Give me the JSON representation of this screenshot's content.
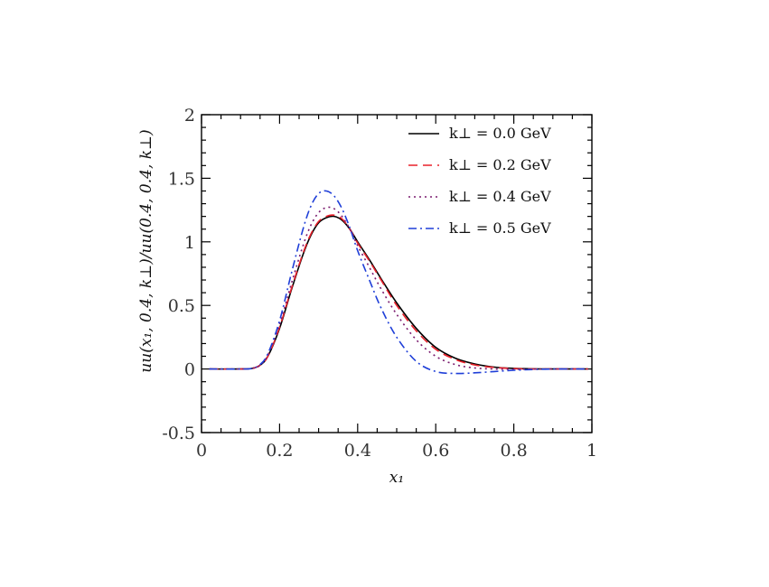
{
  "chart_data": {
    "type": "line",
    "title": "",
    "xlabel": "x₁",
    "ylabel": "uu(x₁, 0.4, k⊥)/uu(0.4, 0.4, k⊥)",
    "xlim": [
      0,
      1
    ],
    "ylim": [
      -0.5,
      2
    ],
    "xticks": [
      0,
      0.2,
      0.4,
      0.6,
      0.8,
      1
    ],
    "xtick_labels": [
      "0",
      "0.2",
      "0.4",
      "0.6",
      "0.8",
      "1"
    ],
    "yticks": [
      -0.5,
      0,
      0.5,
      1,
      1.5,
      2
    ],
    "ytick_labels": [
      "-0.5",
      "0",
      "0.5",
      "1",
      "1.5",
      "2"
    ],
    "grid": false,
    "legend_position": "top-right",
    "x": [
      0.02,
      0.1,
      0.13,
      0.15,
      0.17,
      0.2,
      0.23,
      0.26,
      0.28,
      0.3,
      0.32,
      0.34,
      0.36,
      0.38,
      0.4,
      0.43,
      0.46,
      0.5,
      0.55,
      0.6,
      0.65,
      0.7,
      0.75,
      0.8,
      0.85,
      0.9,
      0.99
    ],
    "series": [
      {
        "name": "k⊥ = 0.0 GeV",
        "color": "#000000",
        "dash": "solid",
        "values": [
          0,
          0,
          0.005,
          0.03,
          0.1,
          0.32,
          0.62,
          0.9,
          1.05,
          1.15,
          1.19,
          1.2,
          1.17,
          1.1,
          1.0,
          0.86,
          0.71,
          0.52,
          0.32,
          0.17,
          0.085,
          0.04,
          0.015,
          0.005,
          0.001,
          0,
          0
        ]
      },
      {
        "name": "k⊥ = 0.2 GeV",
        "color": "#e8202a",
        "dash": "dashed",
        "values": [
          0,
          0,
          0.005,
          0.03,
          0.1,
          0.33,
          0.63,
          0.91,
          1.06,
          1.16,
          1.2,
          1.21,
          1.18,
          1.1,
          0.99,
          0.85,
          0.7,
          0.5,
          0.3,
          0.155,
          0.075,
          0.032,
          0.012,
          0.003,
          0,
          0,
          0
        ]
      },
      {
        "name": "k⊥ = 0.4 GeV",
        "color": "#7a1a6e",
        "dash": "dotted",
        "values": [
          0,
          0,
          0.005,
          0.03,
          0.11,
          0.35,
          0.67,
          0.97,
          1.13,
          1.23,
          1.27,
          1.26,
          1.2,
          1.1,
          0.97,
          0.8,
          0.63,
          0.43,
          0.23,
          0.1,
          0.035,
          0.008,
          0,
          -0.002,
          -0.001,
          0,
          0
        ]
      },
      {
        "name": "k⊥ = 0.5 GeV",
        "color": "#1f3fd8",
        "dash": "dashdot",
        "values": [
          0,
          0,
          0.005,
          0.035,
          0.12,
          0.38,
          0.75,
          1.1,
          1.28,
          1.38,
          1.4,
          1.36,
          1.26,
          1.11,
          0.93,
          0.7,
          0.48,
          0.25,
          0.06,
          -0.02,
          -0.035,
          -0.03,
          -0.02,
          -0.01,
          -0.004,
          0,
          0
        ]
      }
    ]
  }
}
